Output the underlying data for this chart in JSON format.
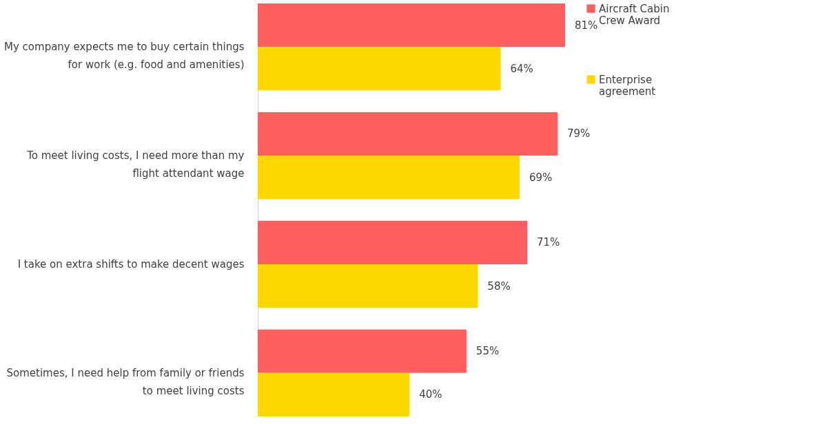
{
  "chart_data": {
    "type": "bar",
    "orientation": "horizontal",
    "categories": [
      "My company expects me to buy certain things for work (e.g. food and amenities)",
      "To meet living costs, I need more than my flight attendant wage",
      "I take on extra shifts to make decent wages",
      "Sometimes, I need help from family or friends to meet living costs"
    ],
    "series": [
      {
        "name": "Aircraft Cabin Crew Award",
        "color": "#ff5f5f",
        "values": [
          81,
          79,
          71,
          55
        ],
        "value_labels": [
          "81%",
          "79%",
          "71%",
          "55%"
        ]
      },
      {
        "name": "Enterprise agreement",
        "color": "#ffd800",
        "values": [
          64,
          69,
          58,
          40
        ],
        "value_labels": [
          "64%",
          "69%",
          "58%",
          "40%"
        ]
      }
    ],
    "legend": "right",
    "grid": false
  }
}
